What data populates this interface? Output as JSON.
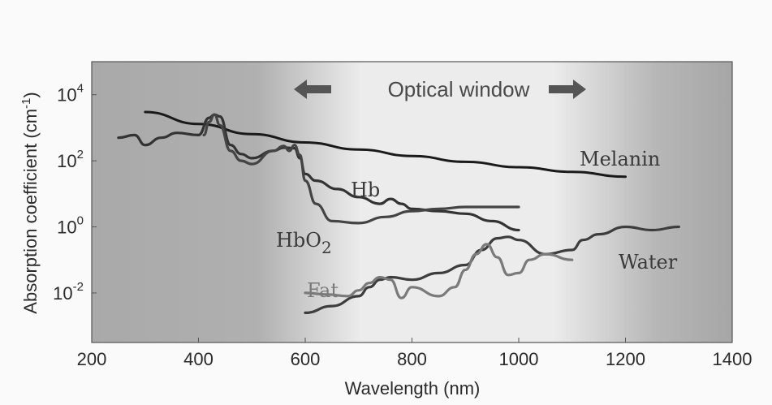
{
  "chart_data": {
    "type": "line",
    "title": "",
    "xlabel": "Wavelength (nm)",
    "ylabel": "Absorption coefficient (cm",
    "ylabel_unit_sup": "-1",
    "ylabel_close": ")",
    "xlim": [
      200,
      1400
    ],
    "ylim_log10": [
      -3.5,
      5
    ],
    "y_scale": "log",
    "x_ticks": [
      200,
      400,
      600,
      800,
      1000,
      1200,
      1400
    ],
    "x_tick_labels": [
      "200",
      "400",
      "600",
      "800",
      "1000",
      "1200",
      "1400"
    ],
    "y_ticks_log10": [
      -2,
      0,
      2,
      4
    ],
    "y_tick_base": "10",
    "y_tick_exponents": [
      "-2",
      "0",
      "2",
      "4"
    ],
    "annotation": {
      "text": "Optical window",
      "arrows": "both",
      "range_nm": [
        600,
        1100
      ]
    },
    "shading": "dark gray outside optical window, light inside 600-1100 nm",
    "series": [
      {
        "name": "Melanin",
        "color": "#1a1a1a",
        "x": [
          300,
          400,
          500,
          600,
          700,
          800,
          900,
          1000,
          1100,
          1200
        ],
        "y": [
          3000,
          1300,
          640,
          360,
          220,
          140,
          93,
          64,
          46,
          33
        ]
      },
      {
        "name": "Hb",
        "color": "#333333",
        "x": [
          250,
          280,
          300,
          330,
          360,
          400,
          420,
          430,
          440,
          460,
          480,
          500,
          540,
          560,
          580,
          590,
          600,
          620,
          660,
          700,
          740,
          760,
          780,
          800,
          850,
          900,
          950,
          1000
        ],
        "y": [
          500,
          600,
          300,
          500,
          700,
          600,
          2000,
          2500,
          2200,
          300,
          160,
          120,
          200,
          250,
          240,
          120,
          40,
          25,
          14,
          8,
          5,
          7,
          5,
          3.5,
          3,
          2.5,
          1.5,
          0.8
        ]
      },
      {
        "name": "HbO",
        "name_sub": "2",
        "color": "#444444",
        "x": [
          410,
          420,
          430,
          440,
          460,
          480,
          500,
          540,
          560,
          570,
          580,
          590,
          600,
          620,
          650,
          700,
          750,
          800,
          850,
          900,
          950,
          1000
        ],
        "y": [
          600,
          1500,
          2500,
          1200,
          200,
          100,
          80,
          200,
          280,
          200,
          300,
          150,
          25,
          5,
          1.5,
          1.3,
          2,
          3,
          3.5,
          4,
          4,
          4
        ]
      },
      {
        "name": "Water",
        "color": "#3d3d3d",
        "x": [
          600,
          650,
          700,
          720,
          740,
          760,
          800,
          850,
          900,
          930,
          960,
          980,
          1000,
          1050,
          1100,
          1120,
          1150,
          1200,
          1250,
          1300
        ],
        "y": [
          0.0025,
          0.004,
          0.008,
          0.015,
          0.025,
          0.03,
          0.025,
          0.04,
          0.07,
          0.2,
          0.45,
          0.5,
          0.4,
          0.15,
          0.2,
          0.4,
          0.6,
          1.0,
          0.8,
          1.0
        ]
      },
      {
        "name": "Fat",
        "color": "#7a7a7a",
        "x": [
          600,
          640,
          680,
          700,
          720,
          740,
          760,
          780,
          800,
          850,
          880,
          900,
          920,
          940,
          960,
          980,
          1000,
          1020,
          1050,
          1100
        ],
        "y": [
          0.01,
          0.009,
          0.008,
          0.012,
          0.02,
          0.03,
          0.025,
          0.007,
          0.015,
          0.008,
          0.015,
          0.05,
          0.15,
          0.3,
          0.12,
          0.035,
          0.04,
          0.1,
          0.15,
          0.1
        ]
      }
    ]
  }
}
